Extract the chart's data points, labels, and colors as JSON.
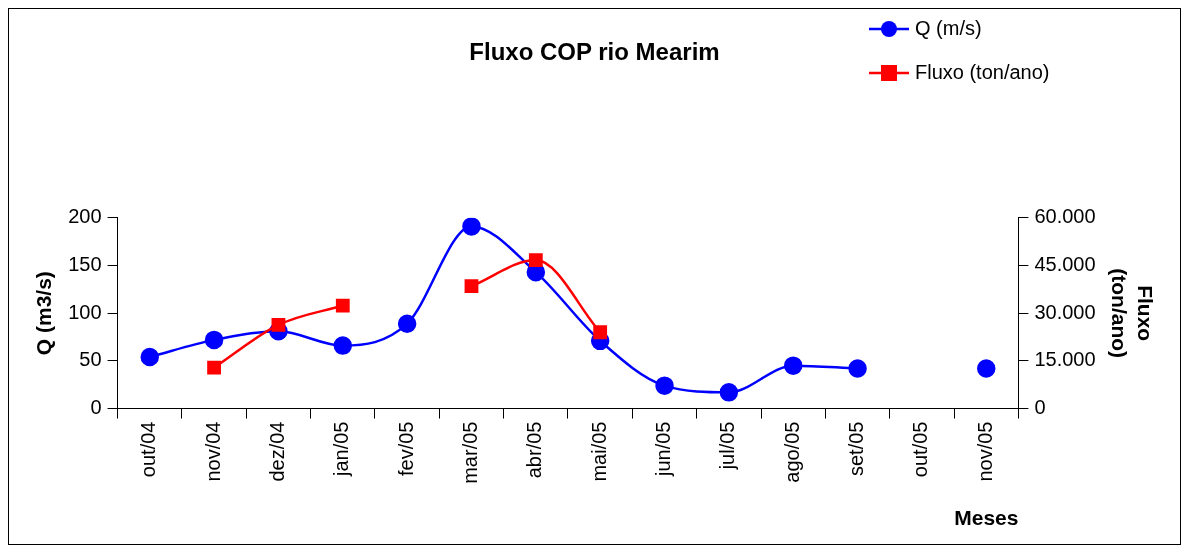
{
  "chart_data": {
    "type": "line",
    "title": "Fluxo COP rio Mearim",
    "xlabel": "Meses",
    "ylabel": "Q (m3/s)",
    "y2label": "Fluxo (ton/ano)",
    "categories": [
      "out/04",
      "nov/04",
      "dez/04",
      "jan/05",
      "fev/05",
      "mar/05",
      "abr/05",
      "mai/05",
      "jun/05",
      "jul/05",
      "ago/05",
      "set/05",
      "out/05",
      "nov/05"
    ],
    "series": [
      {
        "name": "Q (m/s)",
        "color": "#0000ff",
        "marker": "circle",
        "values": [
          54,
          72,
          81,
          66,
          89,
          191,
          143,
          71,
          24,
          17,
          45,
          42,
          null,
          42
        ]
      },
      {
        "name": "Fluxo (ton/ano)",
        "color": "#ff0000",
        "marker": "square",
        "axis": "y2",
        "values": [
          null,
          12900,
          26300,
          32400,
          null,
          38500,
          46700,
          24000,
          null,
          null,
          null,
          null,
          null,
          null
        ]
      }
    ],
    "ylim": [
      0,
      200
    ],
    "yticks": [
      0,
      50,
      100,
      150,
      200
    ],
    "y2lim": [
      0,
      60000
    ],
    "y2ticks": [
      {
        "value": 0,
        "label": "0"
      },
      {
        "value": 15000,
        "label": "15.000"
      },
      {
        "value": 30000,
        "label": "30.000"
      },
      {
        "value": 45000,
        "label": "45.000"
      },
      {
        "value": 60000,
        "label": "60.000"
      }
    ],
    "grid": false,
    "legend": "top right"
  }
}
